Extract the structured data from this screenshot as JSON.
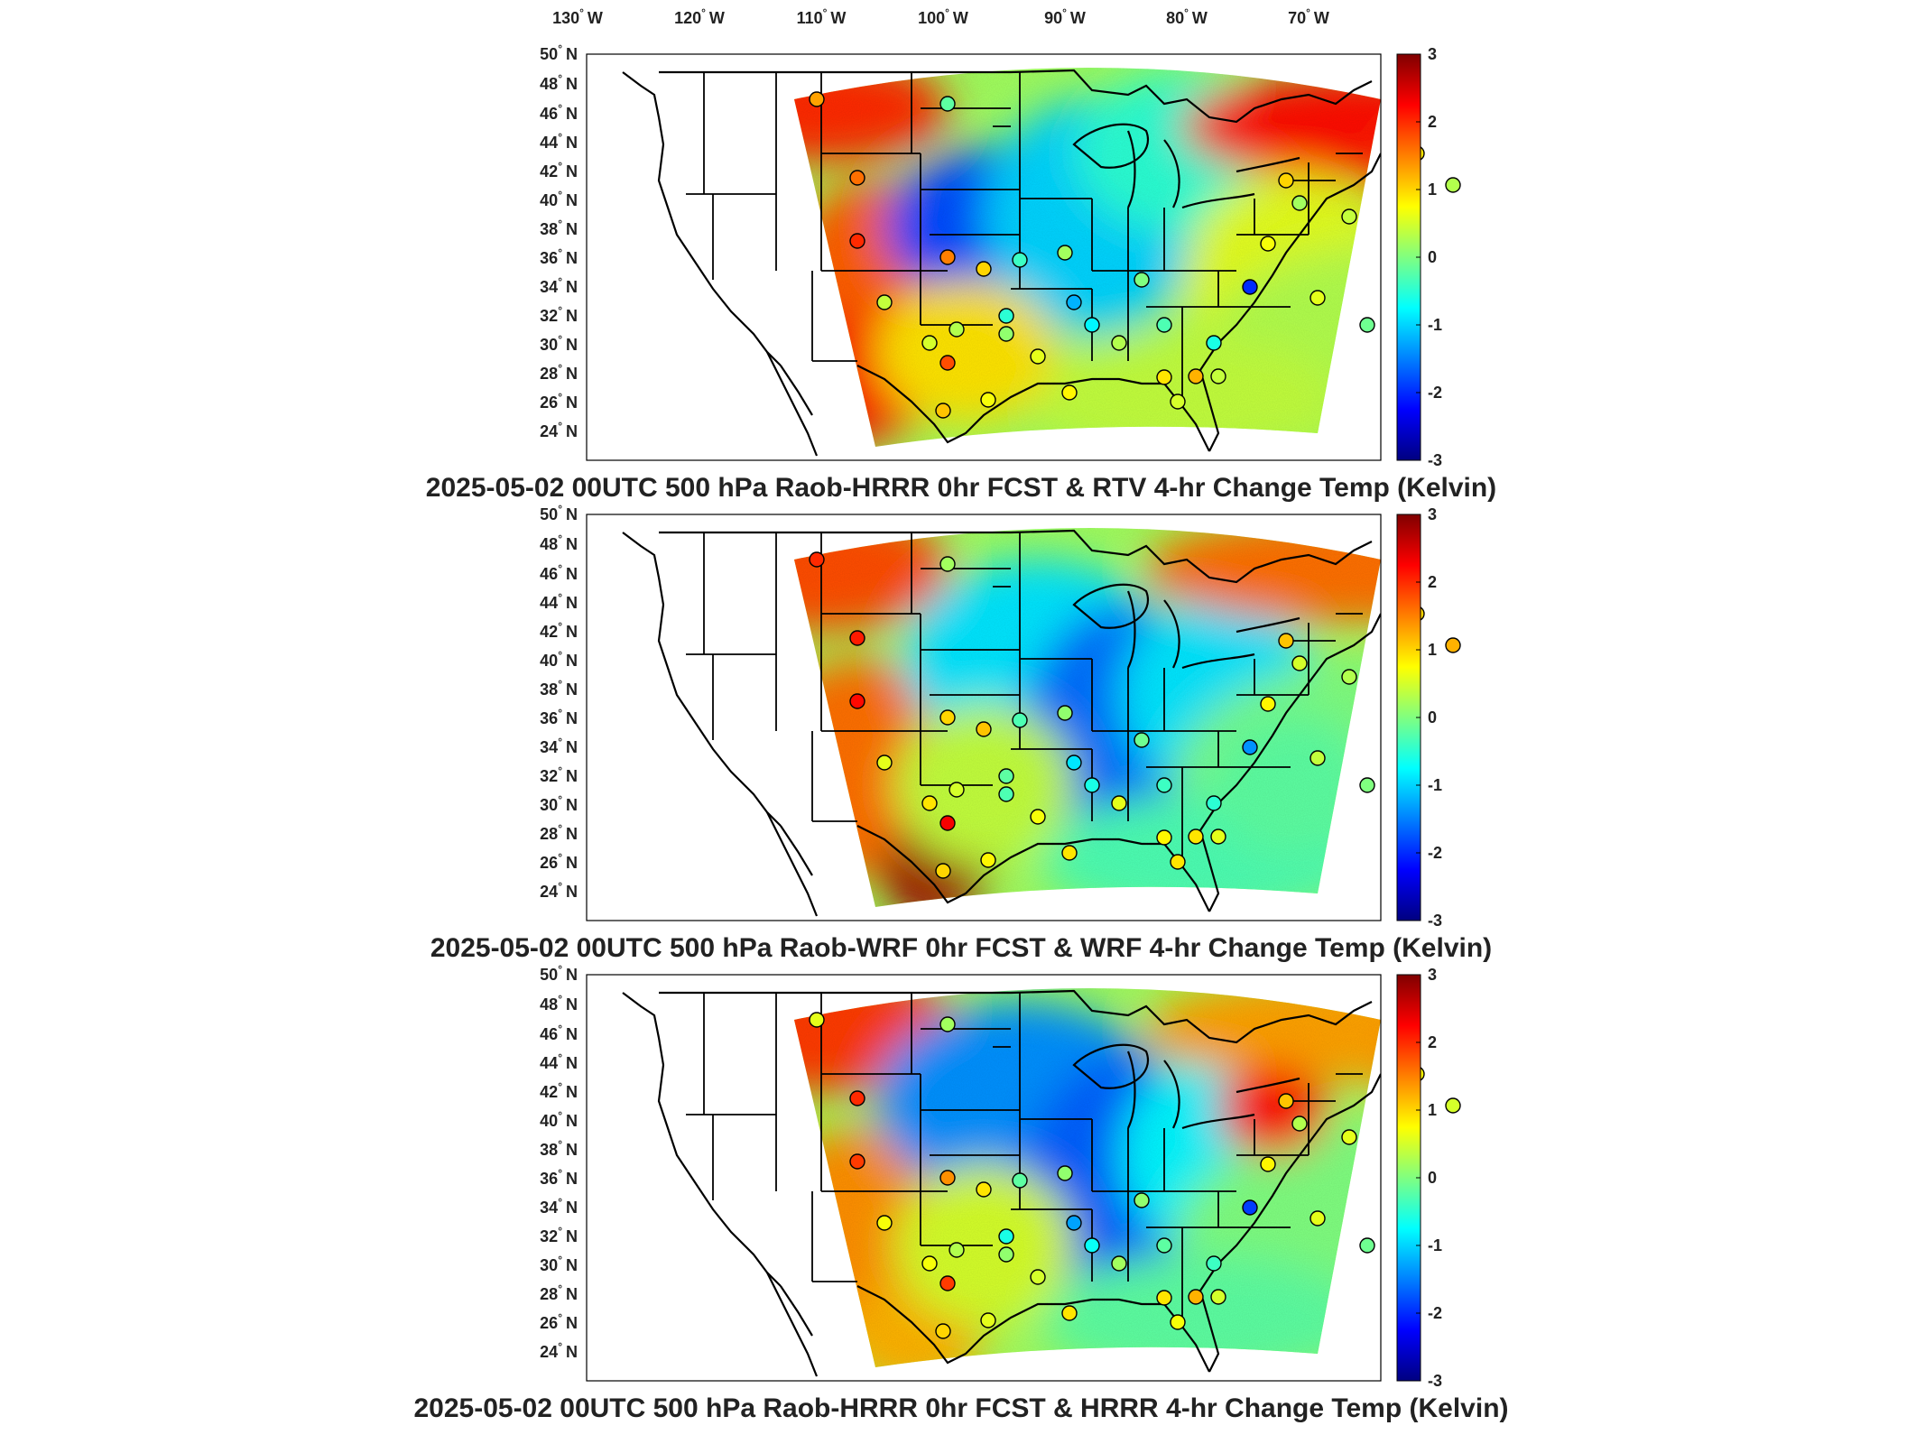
{
  "lon_labels": [
    {
      "deg": "130",
      "dir": "W"
    },
    {
      "deg": "120",
      "dir": "W"
    },
    {
      "deg": "110",
      "dir": "W"
    },
    {
      "deg": "100",
      "dir": "W"
    },
    {
      "deg": "90",
      "dir": "W"
    },
    {
      "deg": "80",
      "dir": "W"
    },
    {
      "deg": "70",
      "dir": "W"
    }
  ],
  "lat_labels": [
    {
      "deg": "50",
      "dir": "N"
    },
    {
      "deg": "48",
      "dir": "N"
    },
    {
      "deg": "46",
      "dir": "N"
    },
    {
      "deg": "44",
      "dir": "N"
    },
    {
      "deg": "42",
      "dir": "N"
    },
    {
      "deg": "40",
      "dir": "N"
    },
    {
      "deg": "38",
      "dir": "N"
    },
    {
      "deg": "36",
      "dir": "N"
    },
    {
      "deg": "34",
      "dir": "N"
    },
    {
      "deg": "32",
      "dir": "N"
    },
    {
      "deg": "30",
      "dir": "N"
    },
    {
      "deg": "28",
      "dir": "N"
    },
    {
      "deg": "26",
      "dir": "N"
    },
    {
      "deg": "24",
      "dir": "N"
    }
  ],
  "colorbar": {
    "ticks": [
      "3",
      "2",
      "1",
      "0",
      "-1",
      "-2",
      "-3"
    ],
    "colors": [
      "#800000",
      "#ff0000",
      "#ff8000",
      "#ffff00",
      "#80ff80",
      "#00ffff",
      "#0080ff",
      "#0000ff",
      "#000080"
    ]
  },
  "panels": [
    {
      "title": "2025-05-02 00UTC 500 hPa Raob-HRRR 0hr FCST & RTV 4-hr Change Temp (Kelvin)",
      "raob_values": [
        1.3,
        1.6,
        2.0,
        0.4,
        -0.2,
        1.5,
        0.5,
        0.3,
        0.1,
        1.8,
        1.1,
        0.7,
        -0.5,
        0.6,
        1.0,
        -0.4,
        0.2,
        -1.2,
        -0.8,
        0.8,
        0.3,
        0.0,
        -0.3,
        0.5,
        0.9,
        1.2,
        0.4,
        -0.6,
        -2.0,
        0.7,
        1.0,
        0.2,
        0.6,
        0.4,
        -0.1,
        0.9,
        0.3
      ]
    },
    {
      "title": "2025-05-02 00UTC 500 hPa Raob-WRF 0hr FCST & WRF 4-hr Change Temp (Kelvin)",
      "raob_values": [
        2.0,
        2.1,
        2.2,
        0.6,
        0.2,
        1.0,
        0.9,
        0.5,
        -0.3,
        2.3,
        1.0,
        0.8,
        -0.2,
        0.7,
        1.1,
        -0.3,
        0.1,
        -0.9,
        -0.6,
        0.9,
        0.6,
        -0.1,
        -0.4,
        0.9,
        0.8,
        0.9,
        0.6,
        -0.5,
        -1.4,
        0.8,
        1.1,
        0.5,
        0.4,
        0.3,
        0.0,
        1.0,
        1.2
      ]
    },
    {
      "title": "2025-05-02 00UTC 500 hPa Raob-HRRR 0hr FCST & HRRR 4-hr Change Temp (Kelvin)",
      "raob_values": [
        0.6,
        2.0,
        1.9,
        0.7,
        0.2,
        1.4,
        0.7,
        0.3,
        0.1,
        1.9,
        1.0,
        0.6,
        -0.6,
        0.5,
        0.9,
        -0.2,
        0.1,
        -1.3,
        -0.7,
        0.9,
        0.2,
        0.1,
        -0.2,
        0.7,
        0.9,
        1.2,
        0.5,
        -0.4,
        -1.9,
        0.8,
        1.1,
        0.3,
        0.6,
        0.6,
        -0.1,
        0.8,
        0.5
      ]
    }
  ]
}
